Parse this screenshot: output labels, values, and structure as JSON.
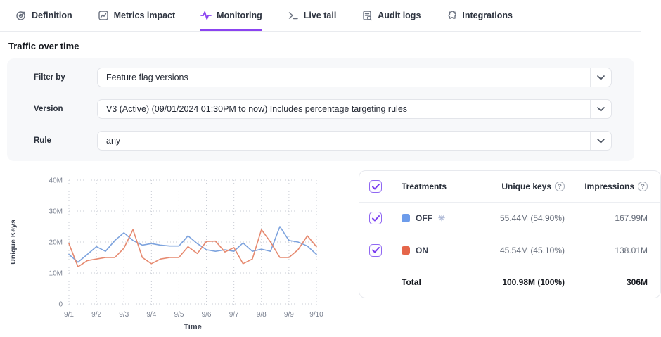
{
  "tabs": [
    {
      "label": "Definition",
      "icon": "target-icon",
      "active": false
    },
    {
      "label": "Metrics impact",
      "icon": "metrics-chart-icon",
      "active": false
    },
    {
      "label": "Monitoring",
      "icon": "pulse-icon",
      "active": true
    },
    {
      "label": "Live tail",
      "icon": "terminal-icon",
      "active": false
    },
    {
      "label": "Audit logs",
      "icon": "audit-log-icon",
      "active": false
    },
    {
      "label": "Integrations",
      "icon": "puzzle-icon",
      "active": false
    }
  ],
  "page_title": "Traffic over time",
  "filters": [
    {
      "label": "Filter by",
      "value": "Feature flag versions"
    },
    {
      "label": "Version",
      "value": "V3 (Active) (09/01/2024 01:30PM to now) Includes percentage targeting rules"
    },
    {
      "label": "Rule",
      "value": "any"
    }
  ],
  "chart_data": {
    "type": "line",
    "xlabel": "Time",
    "ylabel": "Unique Keys",
    "ylim": [
      0,
      40
    ],
    "y_unit": "millions",
    "grid": "dotted",
    "legend_position": "table-right",
    "y_ticks": [
      "0",
      "10M",
      "20M",
      "30M",
      "40M"
    ],
    "x_ticks": [
      "9/1",
      "9/2",
      "9/3",
      "9/4",
      "9/5",
      "9/6",
      "9/7",
      "9/8",
      "9/9",
      "9/10"
    ],
    "x": [
      1,
      1.33,
      1.67,
      2,
      2.33,
      2.67,
      3,
      3.33,
      3.67,
      4,
      4.33,
      4.67,
      5,
      5.33,
      5.67,
      6,
      6.33,
      6.67,
      7,
      7.33,
      7.67,
      8,
      8.33,
      8.67,
      9,
      9.33,
      9.67,
      10
    ],
    "series": [
      {
        "name": "OFF",
        "color": "#7da3de",
        "values": [
          16,
          13.5,
          16,
          18.5,
          17,
          20.5,
          23,
          20.5,
          19,
          19.5,
          19,
          18.7,
          18.7,
          22,
          19.5,
          17.5,
          17,
          17.5,
          17,
          19.7,
          17,
          17.7,
          17,
          25,
          20.5,
          20,
          18.7,
          16
        ]
      },
      {
        "name": "ON",
        "color": "#e6896f",
        "values": [
          19.5,
          12,
          14,
          14.5,
          15,
          15,
          18,
          24,
          15,
          13,
          14.5,
          15,
          15,
          18.5,
          16.3,
          20.2,
          20.3,
          16.8,
          18.2,
          13,
          14.5,
          24,
          20,
          15,
          15,
          17.5,
          22,
          18.5
        ]
      }
    ]
  },
  "treatments_table": {
    "select_all_checked": true,
    "columns": [
      "Treatments",
      "Unique keys",
      "Impressions"
    ],
    "rows": [
      {
        "checked": true,
        "name": "OFF",
        "swatch_color": "#6d9ceb",
        "default_marker": "✳",
        "unique_keys": "55.44M (54.90%)",
        "impressions": "167.99M"
      },
      {
        "checked": true,
        "name": "ON",
        "swatch_color": "#e5664a",
        "default_marker": "",
        "unique_keys": "45.54M (45.10%)",
        "impressions": "138.01M"
      }
    ],
    "total": {
      "label": "Total",
      "unique_keys": "100.98M (100%)",
      "impressions": "306M"
    }
  },
  "colors": {
    "accent_purple": "#8b43f0",
    "panel_bg": "#f7f8fa",
    "grid_line": "#c8ccd4",
    "off_series": "#7da3de",
    "on_series": "#e6896f"
  }
}
